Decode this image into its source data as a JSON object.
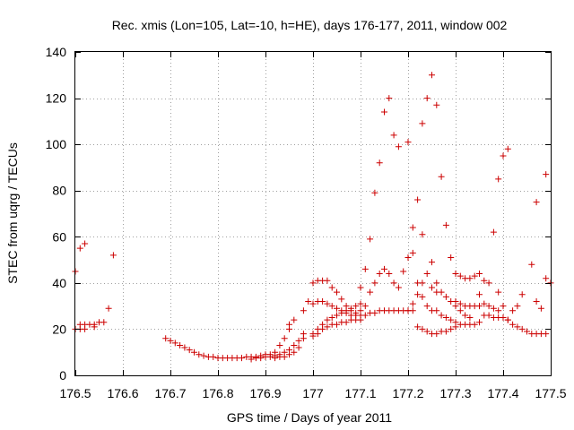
{
  "chart_data": {
    "type": "scatter",
    "title": "Rec. xmis (Lon=105, Lat=-10, h=HE), days 176-177, 2011, window 002",
    "xlabel": "GPS time / Days of year 2011",
    "ylabel": "STEC from uqrg / TECUs",
    "xlim": [
      176.5,
      177.5
    ],
    "ylim": [
      0,
      140
    ],
    "x_ticks": [
      176.5,
      176.6,
      176.7,
      176.8,
      176.9,
      177.0,
      177.1,
      177.2,
      177.3,
      177.4,
      177.5
    ],
    "x_tick_labels": [
      "176.5",
      "176.6",
      "176.7",
      "176.8",
      "176.9",
      "177",
      "177.1",
      "177.2",
      "177.3",
      "177.4",
      "177.5"
    ],
    "y_ticks": [
      0,
      20,
      40,
      60,
      80,
      100,
      120,
      140
    ],
    "y_tick_labels": [
      "0",
      "20",
      "40",
      "60",
      "80",
      "100",
      "120",
      "140"
    ],
    "grid": true,
    "marker": "+",
    "color": "#cc0000",
    "series": [
      {
        "name": "STEC",
        "points": [
          [
            176.5,
            45
          ],
          [
            176.5,
            20
          ],
          [
            176.51,
            55
          ],
          [
            176.52,
            57
          ],
          [
            176.51,
            22
          ],
          [
            176.52,
            22
          ],
          [
            176.53,
            22
          ],
          [
            176.54,
            22
          ],
          [
            176.55,
            23
          ],
          [
            176.56,
            23
          ],
          [
            176.51,
            20
          ],
          [
            176.52,
            20
          ],
          [
            176.54,
            21
          ],
          [
            176.57,
            29
          ],
          [
            176.58,
            52
          ],
          [
            176.69,
            16
          ],
          [
            176.7,
            15
          ],
          [
            176.71,
            14
          ],
          [
            176.72,
            13
          ],
          [
            176.73,
            12
          ],
          [
            176.74,
            11
          ],
          [
            176.75,
            10
          ],
          [
            176.76,
            9
          ],
          [
            176.77,
            8.5
          ],
          [
            176.78,
            8
          ],
          [
            176.79,
            8
          ],
          [
            176.8,
            7.5
          ],
          [
            176.81,
            7.5
          ],
          [
            176.82,
            7.5
          ],
          [
            176.83,
            7.5
          ],
          [
            176.84,
            7.5
          ],
          [
            176.85,
            7.5
          ],
          [
            176.86,
            8
          ],
          [
            176.87,
            8
          ],
          [
            176.88,
            8
          ],
          [
            176.89,
            8.5
          ],
          [
            176.9,
            9
          ],
          [
            176.91,
            9
          ],
          [
            176.92,
            10
          ],
          [
            176.93,
            13
          ],
          [
            176.94,
            16
          ],
          [
            176.95,
            20
          ],
          [
            176.96,
            24
          ],
          [
            176.87,
            7
          ],
          [
            176.88,
            7.5
          ],
          [
            176.89,
            7.5
          ],
          [
            176.9,
            8
          ],
          [
            176.91,
            8
          ],
          [
            176.92,
            8.5
          ],
          [
            176.93,
            9
          ],
          [
            176.94,
            10
          ],
          [
            176.95,
            11
          ],
          [
            176.96,
            13
          ],
          [
            176.97,
            15
          ],
          [
            176.98,
            16
          ],
          [
            176.92,
            7.5
          ],
          [
            176.93,
            8
          ],
          [
            176.94,
            8
          ],
          [
            176.95,
            9
          ],
          [
            176.96,
            10
          ],
          [
            176.97,
            12
          ],
          [
            176.98,
            18
          ],
          [
            176.98,
            28
          ],
          [
            176.99,
            32
          ],
          [
            176.95,
            22
          ],
          [
            177.0,
            18
          ],
          [
            177.01,
            20
          ],
          [
            177.02,
            22
          ],
          [
            177.03,
            24
          ],
          [
            177.04,
            25
          ],
          [
            177.05,
            26
          ],
          [
            177.06,
            27
          ],
          [
            177.07,
            28
          ],
          [
            177.08,
            29
          ],
          [
            177.09,
            30
          ],
          [
            177.1,
            31
          ],
          [
            177.0,
            17
          ],
          [
            177.01,
            18
          ],
          [
            177.02,
            20
          ],
          [
            177.03,
            21
          ],
          [
            177.04,
            22
          ],
          [
            177.05,
            22
          ],
          [
            177.06,
            23
          ],
          [
            177.07,
            23
          ],
          [
            177.08,
            24
          ],
          [
            177.09,
            24
          ],
          [
            177.1,
            24
          ],
          [
            177.0,
            31
          ],
          [
            177.01,
            32
          ],
          [
            177.02,
            32
          ],
          [
            177.03,
            31
          ],
          [
            177.04,
            30
          ],
          [
            177.05,
            29
          ],
          [
            177.06,
            28
          ],
          [
            177.07,
            27
          ],
          [
            177.08,
            26
          ],
          [
            177.09,
            26
          ],
          [
            177.1,
            26
          ],
          [
            177.0,
            40
          ],
          [
            177.01,
            41
          ],
          [
            177.02,
            41
          ],
          [
            177.03,
            41
          ],
          [
            177.04,
            38
          ],
          [
            177.05,
            36
          ],
          [
            177.06,
            33
          ],
          [
            177.07,
            30
          ],
          [
            177.08,
            28
          ],
          [
            177.09,
            27
          ],
          [
            177.1,
            38
          ],
          [
            177.11,
            46
          ],
          [
            177.12,
            59
          ],
          [
            177.13,
            79
          ],
          [
            177.14,
            92
          ],
          [
            177.15,
            114
          ],
          [
            177.16,
            120
          ],
          [
            177.1,
            28
          ],
          [
            177.11,
            30
          ],
          [
            177.12,
            36
          ],
          [
            177.13,
            40
          ],
          [
            177.14,
            44
          ],
          [
            177.15,
            46
          ],
          [
            177.16,
            44
          ],
          [
            177.17,
            40
          ],
          [
            177.18,
            38
          ],
          [
            177.11,
            26
          ],
          [
            177.12,
            27
          ],
          [
            177.13,
            27
          ],
          [
            177.14,
            28
          ],
          [
            177.15,
            28
          ],
          [
            177.16,
            28
          ],
          [
            177.17,
            28
          ],
          [
            177.18,
            28
          ],
          [
            177.19,
            28
          ],
          [
            177.2,
            28
          ],
          [
            177.17,
            104
          ],
          [
            177.18,
            99
          ],
          [
            177.2,
            101
          ],
          [
            177.19,
            45
          ],
          [
            177.2,
            51
          ],
          [
            177.21,
            64
          ],
          [
            177.22,
            76
          ],
          [
            177.23,
            109
          ],
          [
            177.24,
            120
          ],
          [
            177.25,
            130
          ],
          [
            177.26,
            117
          ],
          [
            177.2,
            28
          ],
          [
            177.21,
            31
          ],
          [
            177.22,
            35
          ],
          [
            177.23,
            40
          ],
          [
            177.24,
            44
          ],
          [
            177.25,
            49
          ],
          [
            177.21,
            53
          ],
          [
            177.22,
            40
          ],
          [
            177.23,
            34
          ],
          [
            177.24,
            30
          ],
          [
            177.25,
            28
          ],
          [
            177.21,
            28
          ],
          [
            177.22,
            21
          ],
          [
            177.23,
            20
          ],
          [
            177.24,
            19
          ],
          [
            177.25,
            18
          ],
          [
            177.26,
            18
          ],
          [
            177.27,
            19
          ],
          [
            177.28,
            19
          ],
          [
            177.29,
            20
          ],
          [
            177.3,
            21
          ],
          [
            177.23,
            61
          ],
          [
            177.25,
            38
          ],
          [
            177.26,
            40
          ],
          [
            177.27,
            36
          ],
          [
            177.28,
            34
          ],
          [
            177.29,
            32
          ],
          [
            177.3,
            30
          ],
          [
            177.31,
            28
          ],
          [
            177.32,
            26
          ],
          [
            177.33,
            25
          ],
          [
            177.26,
            36
          ],
          [
            177.27,
            86
          ],
          [
            177.28,
            65
          ],
          [
            177.29,
            51
          ],
          [
            177.3,
            44
          ],
          [
            177.31,
            43
          ],
          [
            177.32,
            42
          ],
          [
            177.33,
            42
          ],
          [
            177.34,
            43
          ],
          [
            177.35,
            44
          ],
          [
            177.26,
            28
          ],
          [
            177.27,
            26
          ],
          [
            177.28,
            25
          ],
          [
            177.29,
            24
          ],
          [
            177.3,
            23
          ],
          [
            177.31,
            22
          ],
          [
            177.32,
            22
          ],
          [
            177.33,
            22
          ],
          [
            177.34,
            22
          ],
          [
            177.35,
            23
          ],
          [
            177.3,
            32
          ],
          [
            177.31,
            31
          ],
          [
            177.32,
            30
          ],
          [
            177.33,
            30
          ],
          [
            177.34,
            30
          ],
          [
            177.35,
            30
          ],
          [
            177.36,
            31
          ],
          [
            177.37,
            30
          ],
          [
            177.38,
            29
          ],
          [
            177.39,
            28
          ],
          [
            177.35,
            35
          ],
          [
            177.36,
            41
          ],
          [
            177.37,
            40
          ],
          [
            177.38,
            62
          ],
          [
            177.39,
            36
          ],
          [
            177.4,
            30
          ],
          [
            177.36,
            26
          ],
          [
            177.37,
            26
          ],
          [
            177.38,
            25
          ],
          [
            177.39,
            25
          ],
          [
            177.4,
            25
          ],
          [
            177.41,
            24
          ],
          [
            177.39,
            85
          ],
          [
            177.4,
            95
          ],
          [
            177.41,
            98
          ],
          [
            177.4,
            25
          ],
          [
            177.41,
            24
          ],
          [
            177.42,
            22
          ],
          [
            177.43,
            21
          ],
          [
            177.44,
            20
          ],
          [
            177.45,
            19
          ],
          [
            177.46,
            18
          ],
          [
            177.47,
            18
          ],
          [
            177.48,
            18
          ],
          [
            177.49,
            18
          ],
          [
            177.42,
            28
          ],
          [
            177.43,
            30
          ],
          [
            177.44,
            35
          ],
          [
            177.46,
            48
          ],
          [
            177.47,
            75
          ],
          [
            177.49,
            87
          ],
          [
            177.47,
            32
          ],
          [
            177.48,
            29
          ],
          [
            177.49,
            42
          ],
          [
            177.5,
            40
          ]
        ]
      }
    ]
  }
}
